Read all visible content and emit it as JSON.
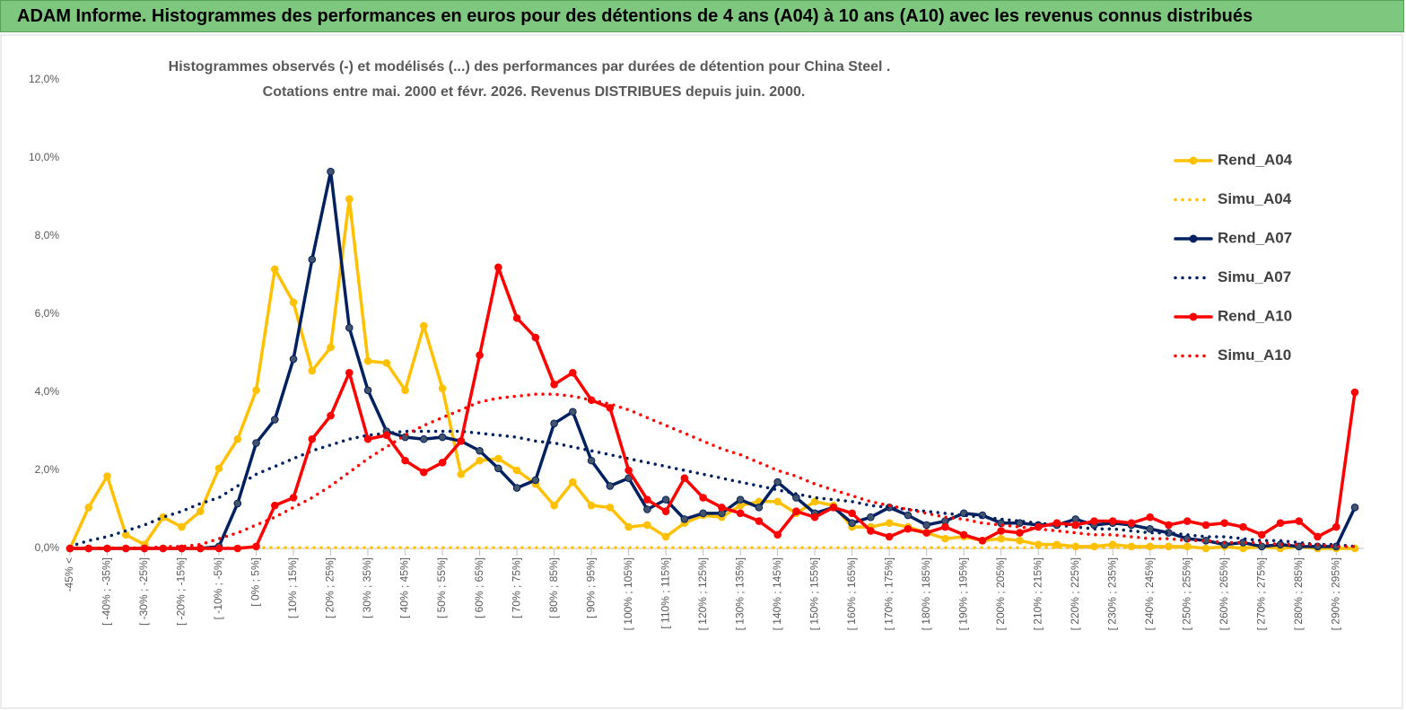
{
  "header": {
    "title": "ADAM Informe. Histogrammes des performances en euros pour des détentions de 4 ans (A04) à 10 ans (A10) avec les revenus connus distribués"
  },
  "chart_data": {
    "type": "line",
    "title": "Histogrammes observés (-) et modélisés (...) des performances par durées de détention pour China Steel .",
    "subtitle": "Cotations entre mai. 2000 et févr. 2026. Revenus DISTRIBUES depuis juin. 2000.",
    "categories": [
      "-45% <",
      null,
      "[ -40% ; -35%]",
      null,
      "[ -30% ; -25%]",
      null,
      "[ -20% ; -15%]",
      null,
      "[ -10% ; -5%]",
      null,
      "[ 0% ; 5%]",
      null,
      "[ 10% ; 15%]",
      null,
      "[ 20% ; 25%]",
      null,
      "[ 30% ; 35%]",
      null,
      "[ 40% ; 45%]",
      null,
      "[ 50% ; 55%]",
      null,
      "[ 60% ; 65%]",
      null,
      "[ 70% ; 75%]",
      null,
      "[ 80% ; 85%]",
      null,
      "[ 90% ; 95%]",
      null,
      "[ 100% ; 105%]",
      null,
      "[ 110% ; 115%]",
      null,
      "[ 120% ; 125%]",
      null,
      "[ 130% ; 135%]",
      null,
      "[ 140% ; 145%]",
      null,
      "[ 150% ; 155%]",
      null,
      "[ 160% ; 165%]",
      null,
      "[ 170% ; 175%]",
      null,
      "[ 180% ; 185%]",
      null,
      "[ 190% ; 195%]",
      null,
      "[ 200% ; 205%]",
      null,
      "[ 210% ; 215%]",
      null,
      "[ 220% ; 225%]",
      null,
      "[ 230% ; 235%]",
      null,
      "[ 240% ; 245%]",
      null,
      "[ 250% ; 255%]",
      null,
      "[ 260% ; 265%]",
      null,
      "[ 270% ; 275%]",
      null,
      "[ 280% ; 285%]",
      null,
      "[ 290% ; 295%]",
      null
    ],
    "ylim": [
      0,
      12
    ],
    "yticks": [
      {
        "value": 0,
        "label": "0,0%"
      },
      {
        "value": 2,
        "label": "2,0%"
      },
      {
        "value": 4,
        "label": "4,0%"
      },
      {
        "value": 6,
        "label": "6,0%"
      },
      {
        "value": 8,
        "label": "8,0%"
      },
      {
        "value": 10,
        "label": "10,0%"
      },
      {
        "value": 12,
        "label": "12,0%"
      }
    ],
    "legend": "right",
    "series": [
      {
        "name": "Rend_A04",
        "color": "#ffc000",
        "style": "solid",
        "values": [
          0,
          1.05,
          1.85,
          0.35,
          0.1,
          0.8,
          0.55,
          0.95,
          2.05,
          2.8,
          4.05,
          7.15,
          6.3,
          4.55,
          5.15,
          8.95,
          4.8,
          4.75,
          4.05,
          5.7,
          4.1,
          1.9,
          2.25,
          2.3,
          2.0,
          1.65,
          1.1,
          1.7,
          1.1,
          1.05,
          0.55,
          0.6,
          0.3,
          0.65,
          0.85,
          0.8,
          1.1,
          1.2,
          1.2,
          0.9,
          1.2,
          1.1,
          0.55,
          0.55,
          0.65,
          0.55,
          0.4,
          0.25,
          0.3,
          0.2,
          0.25,
          0.2,
          0.1,
          0.1,
          0.05,
          0.05,
          0.1,
          0.05,
          0.05,
          0.05,
          0.05,
          0,
          0.05,
          0,
          0.05,
          0,
          0.05,
          0,
          0,
          0
        ]
      },
      {
        "name": "Simu_A04",
        "color": "#ffc000",
        "style": "dotted",
        "values": [
          0.02,
          0.02,
          0.02,
          0.02,
          0.02,
          0.02,
          0.02,
          0.02,
          0.02,
          0.02,
          0.02,
          0.02,
          0.02,
          0.02,
          0.02,
          0.02,
          0.02,
          0.02,
          0.02,
          0.02,
          0.02,
          0.02,
          0.02,
          0.02,
          0.02,
          0.02,
          0.02,
          0.02,
          0.02,
          0.02,
          0.02,
          0.02,
          0.02,
          0.02,
          0.02,
          0.02,
          0.02,
          0.02,
          0.02,
          0.02,
          0.02,
          0.02,
          0.02,
          0.02,
          0.02,
          0.02,
          0.02,
          0.02,
          0.02,
          0.02,
          0.02,
          0.02,
          0.02,
          0.02,
          0.02,
          0.02,
          0.02,
          0.02,
          0.02,
          0.02,
          0.02,
          0.02,
          0.02,
          0.02,
          0.02,
          0.02,
          0.02,
          0.02,
          0.02,
          0.02
        ]
      },
      {
        "name": "Rend_A07",
        "color": "#002060",
        "style": "solid",
        "values": [
          0,
          0,
          0,
          0,
          0,
          0,
          0,
          0,
          0.05,
          1.15,
          2.7,
          3.3,
          4.85,
          7.4,
          9.65,
          5.65,
          4.05,
          3.0,
          2.85,
          2.8,
          2.85,
          2.75,
          2.5,
          2.05,
          1.55,
          1.75,
          3.2,
          3.5,
          2.25,
          1.6,
          1.8,
          1.0,
          1.25,
          0.75,
          0.9,
          0.9,
          1.25,
          1.05,
          1.7,
          1.3,
          0.9,
          1.05,
          0.65,
          0.8,
          1.05,
          0.85,
          0.6,
          0.7,
          0.9,
          0.85,
          0.65,
          0.65,
          0.6,
          0.6,
          0.75,
          0.6,
          0.65,
          0.6,
          0.5,
          0.4,
          0.25,
          0.2,
          0.1,
          0.15,
          0.05,
          0.1,
          0.05,
          0.05,
          0.05,
          1.05
        ]
      },
      {
        "name": "Simu_A07",
        "color": "#002060",
        "style": "dotted",
        "values": [
          0.05,
          0.2,
          0.3,
          0.45,
          0.6,
          0.8,
          0.95,
          1.15,
          1.3,
          1.6,
          1.9,
          2.1,
          2.3,
          2.5,
          2.65,
          2.8,
          2.9,
          2.95,
          3.0,
          3.0,
          3.0,
          3.0,
          2.95,
          2.9,
          2.85,
          2.75,
          2.7,
          2.6,
          2.5,
          2.4,
          2.3,
          2.2,
          2.1,
          2.0,
          1.9,
          1.8,
          1.7,
          1.6,
          1.5,
          1.4,
          1.3,
          1.25,
          1.2,
          1.1,
          1.05,
          1.0,
          0.95,
          0.9,
          0.85,
          0.8,
          0.75,
          0.7,
          0.65,
          0.6,
          0.55,
          0.5,
          0.5,
          0.45,
          0.4,
          0.4,
          0.35,
          0.3,
          0.3,
          0.25,
          0.2,
          0.2,
          0.15,
          0.1,
          0.1,
          0.05
        ]
      },
      {
        "name": "Rend_A10",
        "color": "#ff0000",
        "style": "solid",
        "values": [
          0,
          0,
          0,
          0,
          0,
          0,
          0,
          0,
          0,
          0,
          0.05,
          1.1,
          1.3,
          2.8,
          3.4,
          4.5,
          2.8,
          2.9,
          2.25,
          1.95,
          2.2,
          2.75,
          4.95,
          7.2,
          5.9,
          5.4,
          4.2,
          4.5,
          3.8,
          3.6,
          2.0,
          1.25,
          0.95,
          1.8,
          1.3,
          1.05,
          0.9,
          0.7,
          0.35,
          0.95,
          0.8,
          1.05,
          0.9,
          0.45,
          0.3,
          0.5,
          0.4,
          0.55,
          0.35,
          0.2,
          0.45,
          0.4,
          0.55,
          0.65,
          0.6,
          0.7,
          0.7,
          0.65,
          0.8,
          0.6,
          0.7,
          0.6,
          0.65,
          0.55,
          0.35,
          0.65,
          0.7,
          0.3,
          0.55,
          4.0
        ]
      },
      {
        "name": "Simu_A10",
        "color": "#ff0000",
        "style": "dotted",
        "values": [
          0,
          0,
          0,
          0,
          0,
          0.05,
          0.05,
          0.1,
          0.25,
          0.4,
          0.6,
          0.8,
          1.05,
          1.3,
          1.6,
          1.95,
          2.3,
          2.6,
          2.9,
          3.15,
          3.35,
          3.55,
          3.75,
          3.85,
          3.9,
          3.95,
          3.95,
          3.9,
          3.8,
          3.7,
          3.55,
          3.35,
          3.15,
          2.95,
          2.75,
          2.55,
          2.4,
          2.2,
          2.0,
          1.85,
          1.65,
          1.5,
          1.35,
          1.2,
          1.1,
          1.0,
          0.9,
          0.8,
          0.75,
          0.65,
          0.6,
          0.55,
          0.5,
          0.45,
          0.4,
          0.35,
          0.35,
          0.3,
          0.25,
          0.25,
          0.2,
          0.2,
          0.15,
          0.15,
          0.15,
          0.1,
          0.1,
          0.1,
          0.05,
          0.05
        ]
      }
    ]
  }
}
